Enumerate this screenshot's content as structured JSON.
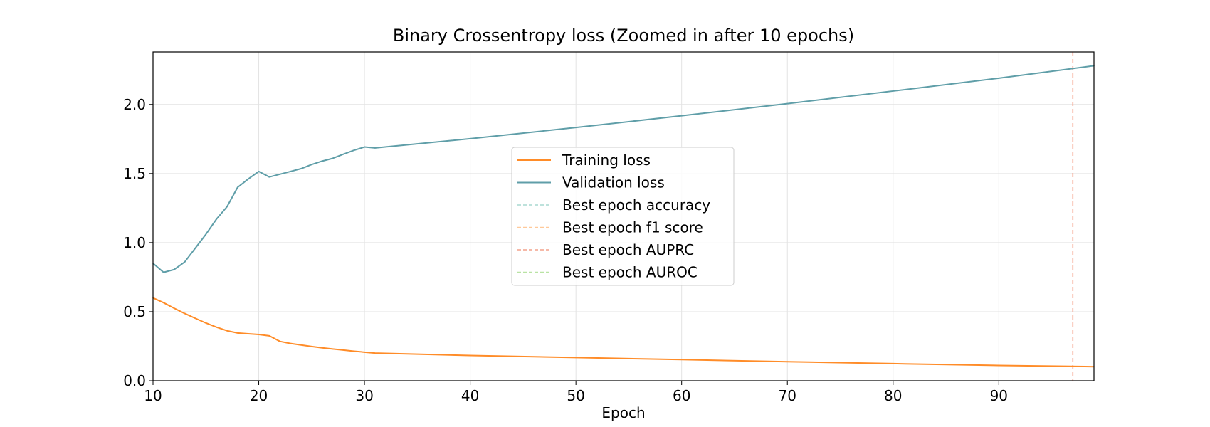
{
  "chart_data": {
    "type": "line",
    "title": "Binary Crossentropy loss (Zoomed in after 10 epochs)",
    "xlabel": "Epoch",
    "ylabel": "",
    "xlim": [
      10,
      99
    ],
    "ylim": [
      0,
      2.38
    ],
    "xticks": [
      10,
      20,
      30,
      40,
      50,
      60,
      70,
      80,
      90
    ],
    "yticks": [
      0.0,
      0.5,
      1.0,
      1.5,
      2.0
    ],
    "ytick_labels": [
      "0.0",
      "0.5",
      "1.0",
      "1.5",
      "2.0"
    ],
    "grid": true,
    "legend_position": "center",
    "series": [
      {
        "name": "Training loss",
        "color": "#ff8c28",
        "x": [
          10,
          11,
          12,
          13,
          14,
          15,
          16,
          17,
          18,
          19,
          20,
          21,
          22,
          23,
          24,
          25,
          26,
          27,
          28,
          29,
          30,
          31,
          40,
          50,
          60,
          70,
          80,
          90,
          99
        ],
        "y": [
          0.6,
          0.565,
          0.525,
          0.487,
          0.452,
          0.418,
          0.388,
          0.362,
          0.346,
          0.34,
          0.335,
          0.325,
          0.285,
          0.27,
          0.259,
          0.248,
          0.238,
          0.23,
          0.222,
          0.214,
          0.207,
          0.2,
          0.183,
          0.168,
          0.153,
          0.138,
          0.124,
          0.111,
          0.102
        ]
      },
      {
        "name": "Validation loss",
        "color": "#5f9ea8",
        "x": [
          10,
          11,
          12,
          13,
          14,
          15,
          16,
          17,
          18,
          19,
          20,
          21,
          22,
          23,
          24,
          25,
          26,
          27,
          28,
          29,
          30,
          31,
          40,
          50,
          60,
          70,
          80,
          90,
          99
        ],
        "y": [
          0.85,
          0.785,
          0.805,
          0.86,
          0.96,
          1.06,
          1.17,
          1.26,
          1.4,
          1.46,
          1.515,
          1.475,
          1.495,
          1.515,
          1.535,
          1.565,
          1.59,
          1.61,
          1.64,
          1.668,
          1.692,
          1.685,
          1.752,
          1.833,
          1.918,
          2.006,
          2.097,
          2.19,
          2.28
        ]
      }
    ],
    "vlines": [
      {
        "name": "Best epoch accuracy",
        "color": "#a8d8d0",
        "x": null
      },
      {
        "name": "Best epoch f1 score",
        "color": "#ffc99a",
        "x": null
      },
      {
        "name": "Best epoch AUPRC",
        "color": "#f4a28c",
        "x": 97
      },
      {
        "name": "Best epoch AUROC",
        "color": "#b9e3a4",
        "x": null
      }
    ]
  }
}
